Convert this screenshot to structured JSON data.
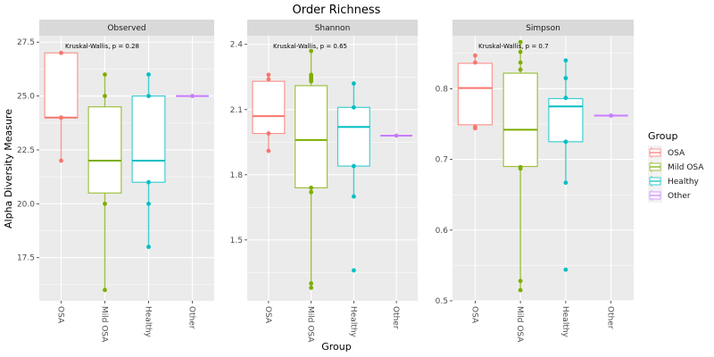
{
  "chart_data": {
    "type": "box",
    "title": "Order Richness",
    "xlabel": "Group",
    "ylabel": "Alpha Diversity Measure",
    "categories": [
      "OSA",
      "Mild OSA",
      "Healthy",
      "Other"
    ],
    "legend": {
      "title": "Group",
      "position": "right",
      "entries": [
        {
          "label": "OSA",
          "color": "#F8766D"
        },
        {
          "label": "Mild OSA",
          "color": "#7CAE00"
        },
        {
          "label": "Healthy",
          "color": "#00BFC4"
        },
        {
          "label": "Other",
          "color": "#C77CFF"
        }
      ]
    },
    "grid": true,
    "facets": [
      {
        "name": "Observed",
        "annotation": "Kruskal-Wallis, p = 0.28",
        "ylim": [
          15.5,
          27.8
        ],
        "yticks": [
          17.5,
          20.0,
          22.5,
          25.0,
          27.5
        ],
        "ytick_labels": [
          "17.5",
          "20.0",
          "22.5",
          "25.0",
          "27.5"
        ],
        "minor_yticks": [
          16.25,
          18.75,
          21.25,
          23.75,
          26.25
        ],
        "boxes": [
          {
            "group": "OSA",
            "q1": 24,
            "median": 24,
            "q3": 27,
            "whisker_low": 22,
            "whisker_high": 27,
            "points": [
              27,
              24,
              24,
              22
            ]
          },
          {
            "group": "Mild OSA",
            "q1": 20.5,
            "median": 22,
            "q3": 24.5,
            "whisker_low": 16,
            "whisker_high": 26,
            "points": [
              26,
              25,
              20,
              16
            ]
          },
          {
            "group": "Healthy",
            "q1": 21,
            "median": 22,
            "q3": 25,
            "whisker_low": 18,
            "whisker_high": 26,
            "points": [
              26,
              25,
              21,
              20,
              18
            ]
          },
          {
            "group": "Other",
            "q1": 25,
            "median": 25,
            "q3": 25,
            "whisker_low": 25,
            "whisker_high": 25,
            "points": [
              25
            ]
          }
        ]
      },
      {
        "name": "Shannon",
        "annotation": "Kruskal-Wallis, p = 0.65",
        "ylim": [
          1.22,
          2.44
        ],
        "yticks": [
          1.5,
          1.8,
          2.1,
          2.4
        ],
        "ytick_labels": [
          "1.5",
          "1.8",
          "2.1",
          "2.4"
        ],
        "minor_yticks": [
          1.35,
          1.65,
          1.95,
          2.25
        ],
        "boxes": [
          {
            "group": "OSA",
            "q1": 1.99,
            "median": 2.07,
            "q3": 2.23,
            "whisker_low": 1.91,
            "whisker_high": 2.26,
            "points": [
              2.26,
              2.24,
              1.99,
              1.91
            ]
          },
          {
            "group": "Mild OSA",
            "q1": 1.74,
            "median": 1.96,
            "q3": 2.21,
            "whisker_low": 1.28,
            "whisker_high": 2.37,
            "points": [
              2.37,
              2.26,
              2.25,
              2.24,
              2.23,
              1.74,
              1.72,
              1.3,
              1.28
            ]
          },
          {
            "group": "Healthy",
            "q1": 1.84,
            "median": 2.02,
            "q3": 2.11,
            "whisker_low": 1.7,
            "whisker_high": 2.22,
            "points": [
              2.22,
              2.11,
              1.84,
              1.7,
              1.36
            ]
          },
          {
            "group": "Other",
            "q1": 1.98,
            "median": 1.98,
            "q3": 1.98,
            "whisker_low": 1.98,
            "whisker_high": 1.98,
            "points": [
              1.98
            ]
          }
        ]
      },
      {
        "name": "Simpson",
        "annotation": "Kruskal-Wallis, p = 0.7",
        "ylim": [
          0.5,
          0.875
        ],
        "yticks": [
          0.5,
          0.6,
          0.7,
          0.8
        ],
        "ytick_labels": [
          "0.5",
          "0.6",
          "0.7",
          "0.8"
        ],
        "minor_yticks": [
          0.55,
          0.65,
          0.75,
          0.85
        ],
        "boxes": [
          {
            "group": "OSA",
            "q1": 0.749,
            "median": 0.801,
            "q3": 0.836,
            "whisker_low": 0.744,
            "whisker_high": 0.847,
            "points": [
              0.847,
              0.837,
              0.746,
              0.744
            ]
          },
          {
            "group": "Mild OSA",
            "q1": 0.69,
            "median": 0.742,
            "q3": 0.822,
            "whisker_low": 0.515,
            "whisker_high": 0.866,
            "points": [
              0.866,
              0.852,
              0.837,
              0.827,
              0.689,
              0.687,
              0.528,
              0.515
            ]
          },
          {
            "group": "Healthy",
            "q1": 0.725,
            "median": 0.775,
            "q3": 0.786,
            "whisker_low": 0.667,
            "whisker_high": 0.84,
            "points": [
              0.84,
              0.815,
              0.787,
              0.725,
              0.667,
              0.544
            ]
          },
          {
            "group": "Other",
            "q1": 0.762,
            "median": 0.762,
            "q3": 0.762,
            "whisker_low": 0.762,
            "whisker_high": 0.762,
            "points": [
              0.762
            ]
          }
        ]
      }
    ]
  }
}
